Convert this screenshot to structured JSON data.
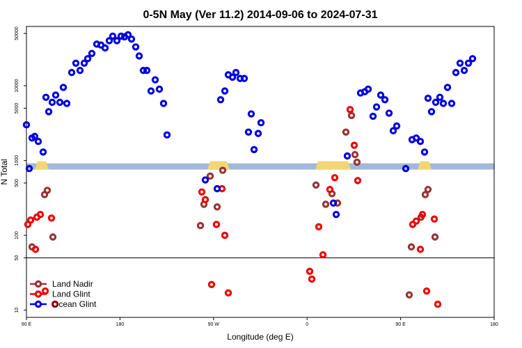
{
  "chart_data": {
    "type": "scatter",
    "title": "0-5N May (Ver 11.2)   2014-09-06 to 2024-07-31",
    "xlabel": "Longitude (deg E)",
    "ylabel": "N Total",
    "x_ticks": [
      "90 E",
      "180",
      "90 W",
      "0",
      "90 E",
      "180"
    ],
    "y_ticks": [
      "10",
      "50",
      "100",
      "500",
      "1000",
      "5000",
      "10000",
      "50000"
    ],
    "y_scale": "log",
    "legend_position": "bottom-left",
    "land_band_colors": {
      "ocean": "#a3b8d8",
      "land": "#f2d675"
    },
    "series": [
      {
        "name": "Land Nadir",
        "color": "#993333",
        "points": [
          {
            "x": 8,
            "y": 70
          },
          {
            "x": 26,
            "y": 350
          },
          {
            "x": 30,
            "y": 400
          },
          {
            "x": 38,
            "y": 95
          },
          {
            "x": 250,
            "y": 135
          },
          {
            "x": 255,
            "y": 260
          },
          {
            "x": 264,
            "y": 620
          },
          {
            "x": 274,
            "y": 240
          },
          {
            "x": 282,
            "y": 740
          },
          {
            "x": 416,
            "y": 470
          },
          {
            "x": 430,
            "y": 260
          },
          {
            "x": 439,
            "y": 360
          },
          {
            "x": 447,
            "y": 270
          },
          {
            "x": 459,
            "y": 2400
          },
          {
            "x": 467,
            "y": 4000
          },
          {
            "x": 472,
            "y": 1200
          },
          {
            "x": 475,
            "y": 950
          },
          {
            "x": 550,
            "y": 16
          },
          {
            "x": 553,
            "y": 70
          },
          {
            "x": 567,
            "y": 175
          },
          {
            "x": 573,
            "y": 350
          },
          {
            "x": 577,
            "y": 410
          },
          {
            "x": 587,
            "y": 95
          }
        ]
      },
      {
        "name": "Land Glint",
        "color": "#ee0000",
        "points": [
          {
            "x": 2,
            "y": 140
          },
          {
            "x": 6,
            "y": 160
          },
          {
            "x": 15,
            "y": 175
          },
          {
            "x": 20,
            "y": 190
          },
          {
            "x": 13,
            "y": 65
          },
          {
            "x": 36,
            "y": 170
          },
          {
            "x": 41,
            "y": 12
          },
          {
            "x": 27,
            "y": 18
          },
          {
            "x": 252,
            "y": 380
          },
          {
            "x": 257,
            "y": 300
          },
          {
            "x": 266,
            "y": 22
          },
          {
            "x": 273,
            "y": 140
          },
          {
            "x": 281,
            "y": 420
          },
          {
            "x": 285,
            "y": 100
          },
          {
            "x": 290,
            "y": 17
          },
          {
            "x": 407,
            "y": 33
          },
          {
            "x": 410,
            "y": 26
          },
          {
            "x": 420,
            "y": 130
          },
          {
            "x": 426,
            "y": 55
          },
          {
            "x": 436,
            "y": 410
          },
          {
            "x": 443,
            "y": 590
          },
          {
            "x": 465,
            "y": 4800
          },
          {
            "x": 471,
            "y": 1600
          },
          {
            "x": 476,
            "y": 540
          },
          {
            "x": 555,
            "y": 140
          },
          {
            "x": 560,
            "y": 155
          },
          {
            "x": 566,
            "y": 65
          },
          {
            "x": 569,
            "y": 190
          },
          {
            "x": 575,
            "y": 18
          },
          {
            "x": 586,
            "y": 165
          },
          {
            "x": 591,
            "y": 12
          }
        ]
      },
      {
        "name": "Ocean Glint",
        "color": "#0000dd",
        "points": [
          {
            "x": 0,
            "y": 3000
          },
          {
            "x": 4,
            "y": 780
          },
          {
            "x": 8,
            "y": 2000
          },
          {
            "x": 12,
            "y": 2100
          },
          {
            "x": 17,
            "y": 1800
          },
          {
            "x": 24,
            "y": 1300
          },
          {
            "x": 28,
            "y": 7000
          },
          {
            "x": 32,
            "y": 4500
          },
          {
            "x": 37,
            "y": 6000
          },
          {
            "x": 42,
            "y": 7500
          },
          {
            "x": 48,
            "y": 6000
          },
          {
            "x": 53,
            "y": 9500
          },
          {
            "x": 58,
            "y": 5800
          },
          {
            "x": 65,
            "y": 15000
          },
          {
            "x": 71,
            "y": 20000
          },
          {
            "x": 77,
            "y": 16000
          },
          {
            "x": 83,
            "y": 20000
          },
          {
            "x": 88,
            "y": 23000
          },
          {
            "x": 94,
            "y": 27000
          },
          {
            "x": 101,
            "y": 36000
          },
          {
            "x": 107,
            "y": 35000
          },
          {
            "x": 113,
            "y": 32000
          },
          {
            "x": 119,
            "y": 40000
          },
          {
            "x": 124,
            "y": 46000
          },
          {
            "x": 130,
            "y": 40000
          },
          {
            "x": 136,
            "y": 46000
          },
          {
            "x": 141,
            "y": 45000
          },
          {
            "x": 146,
            "y": 48000
          },
          {
            "x": 151,
            "y": 42000
          },
          {
            "x": 157,
            "y": 33000
          },
          {
            "x": 162,
            "y": 25000
          },
          {
            "x": 168,
            "y": 16000
          },
          {
            "x": 173,
            "y": 16000
          },
          {
            "x": 179,
            "y": 8500
          },
          {
            "x": 185,
            "y": 12000
          },
          {
            "x": 191,
            "y": 9000
          },
          {
            "x": 197,
            "y": 5800
          },
          {
            "x": 202,
            "y": 2200
          },
          {
            "x": 257,
            "y": 550
          },
          {
            "x": 274,
            "y": 420
          },
          {
            "x": 279,
            "y": 6500
          },
          {
            "x": 285,
            "y": 8500
          },
          {
            "x": 290,
            "y": 14000
          },
          {
            "x": 296,
            "y": 13000
          },
          {
            "x": 301,
            "y": 15000
          },
          {
            "x": 307,
            "y": 12500
          },
          {
            "x": 313,
            "y": 12500
          },
          {
            "x": 319,
            "y": 2400
          },
          {
            "x": 323,
            "y": 4200
          },
          {
            "x": 327,
            "y": 1400
          },
          {
            "x": 333,
            "y": 2300
          },
          {
            "x": 337,
            "y": 3200
          },
          {
            "x": 441,
            "y": 270
          },
          {
            "x": 445,
            "y": 190
          },
          {
            "x": 461,
            "y": 1150
          },
          {
            "x": 480,
            "y": 8000
          },
          {
            "x": 486,
            "y": 8300
          },
          {
            "x": 491,
            "y": 9000
          },
          {
            "x": 498,
            "y": 3900
          },
          {
            "x": 503,
            "y": 5200
          },
          {
            "x": 509,
            "y": 7500
          },
          {
            "x": 515,
            "y": 6500
          },
          {
            "x": 521,
            "y": 4300
          },
          {
            "x": 527,
            "y": 2500
          },
          {
            "x": 532,
            "y": 2900
          },
          {
            "x": 545,
            "y": 780
          },
          {
            "x": 554,
            "y": 1900
          },
          {
            "x": 560,
            "y": 2000
          },
          {
            "x": 566,
            "y": 1800
          },
          {
            "x": 572,
            "y": 1300
          },
          {
            "x": 577,
            "y": 6800
          },
          {
            "x": 582,
            "y": 4500
          },
          {
            "x": 588,
            "y": 6000
          },
          {
            "x": 594,
            "y": 7000
          },
          {
            "x": 599,
            "y": 5800
          },
          {
            "x": 605,
            "y": 9500
          },
          {
            "x": 611,
            "y": 5800
          },
          {
            "x": 617,
            "y": 15000
          },
          {
            "x": 623,
            "y": 20000
          },
          {
            "x": 629,
            "y": 16000
          },
          {
            "x": 635,
            "y": 20000
          },
          {
            "x": 641,
            "y": 23000
          }
        ]
      }
    ],
    "land_segments": [
      [
        12,
        32
      ],
      [
        260,
        292
      ],
      [
        415,
        466
      ],
      [
        562,
        582
      ]
    ]
  }
}
